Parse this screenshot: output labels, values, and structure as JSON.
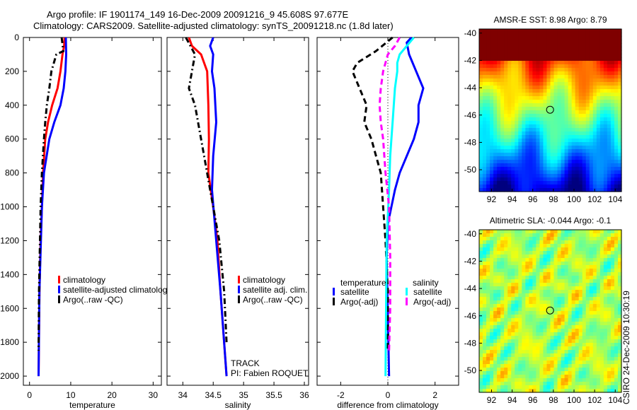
{
  "title_line1": "Argo profile: IF 1901174_149 16-Dec-2009 20091216_9 45.608S 97.677E",
  "title_line2": "Climatology: CARS2009. Satellite-adjusted climatology: synTS_20091218.nc (1.8d later)",
  "side_label": "CSIRO 24-Dec-2009 10:30:19",
  "colors": {
    "red": "#ff0000",
    "blue": "#0000ff",
    "black": "#000000",
    "cyan": "#00ffff",
    "magenta": "#ff00ff"
  },
  "chart_data": [
    {
      "type": "line",
      "id": "temp",
      "xlabel": "temperature",
      "xlim": [
        -1.5,
        32
      ],
      "ylim": [
        0,
        2054
      ],
      "yreversed": true,
      "xticks": [
        0,
        10,
        20,
        30
      ],
      "yticks": [
        0,
        200,
        400,
        600,
        800,
        1000,
        1200,
        1400,
        1600,
        1800,
        2000
      ],
      "legend": [
        "climatology",
        "satellite-adjusted climatolog",
        "Argo(..raw -QC)"
      ],
      "series": [
        {
          "name": "climatology",
          "color": "#ff0000",
          "style": "solid",
          "points": [
            [
              0,
              8.5
            ],
            [
              50,
              8.4
            ],
            [
              100,
              8.0
            ],
            [
              200,
              7.5
            ],
            [
              300,
              6.8
            ],
            [
              400,
              5.5
            ],
            [
              500,
              4.5
            ],
            [
              600,
              3.8
            ],
            [
              800,
              3.3
            ],
            [
              1000,
              3.0
            ],
            [
              1200,
              2.7
            ],
            [
              1500,
              2.4
            ],
            [
              2000,
              2.2
            ]
          ]
        },
        {
          "name": "satellite",
          "color": "#0000ff",
          "style": "solid",
          "points": [
            [
              0,
              8.8
            ],
            [
              100,
              8.9
            ],
            [
              200,
              8.7
            ],
            [
              300,
              8.3
            ],
            [
              400,
              7.5
            ],
            [
              500,
              6.0
            ],
            [
              600,
              4.8
            ],
            [
              800,
              3.5
            ],
            [
              1000,
              3.0
            ],
            [
              1500,
              2.4
            ],
            [
              2000,
              2.2
            ]
          ]
        },
        {
          "name": "Argo",
          "color": "#000000",
          "style": "dashdot",
          "points": [
            [
              0,
              7.8
            ],
            [
              80,
              8.2
            ],
            [
              100,
              6.5
            ],
            [
              200,
              5.3
            ],
            [
              300,
              4.8
            ],
            [
              400,
              4.2
            ],
            [
              500,
              3.8
            ],
            [
              600,
              3.5
            ],
            [
              800,
              3.0
            ],
            [
              1000,
              2.7
            ],
            [
              1500,
              2.3
            ],
            [
              1850,
              2.2
            ]
          ]
        }
      ]
    },
    {
      "type": "line",
      "id": "sal",
      "xlabel": "salinity",
      "xlim": [
        33.74,
        36.07
      ],
      "ylim": [
        0,
        2054
      ],
      "yreversed": true,
      "xticks": [
        34,
        34.5,
        35,
        35.5,
        36
      ],
      "legend": [
        "climatology",
        "satellite adj. clim.",
        "Argo(..raw -QC)"
      ],
      "annotations": [
        "TRACK",
        "PI: Fabien ROQUET"
      ],
      "series": [
        {
          "name": "climatology",
          "color": "#ff0000",
          "style": "solid",
          "points": [
            [
              0,
              34.1
            ],
            [
              50,
              34.15
            ],
            [
              100,
              34.3
            ],
            [
              200,
              34.4
            ],
            [
              400,
              34.42
            ],
            [
              600,
              34.43
            ],
            [
              800,
              34.42
            ],
            [
              1000,
              34.5
            ],
            [
              1200,
              34.57
            ],
            [
              1500,
              34.62
            ],
            [
              2000,
              34.72
            ]
          ]
        },
        {
          "name": "satellite",
          "color": "#0000ff",
          "style": "solid",
          "points": [
            [
              0,
              34.5
            ],
            [
              50,
              34.45
            ],
            [
              100,
              34.5
            ],
            [
              200,
              34.48
            ],
            [
              300,
              34.52
            ],
            [
              500,
              34.55
            ],
            [
              700,
              34.5
            ],
            [
              900,
              34.48
            ],
            [
              1200,
              34.55
            ],
            [
              1500,
              34.62
            ],
            [
              2000,
              34.72
            ]
          ]
        },
        {
          "name": "Argo",
          "color": "#000000",
          "style": "dashdot",
          "points": [
            [
              0,
              34.05
            ],
            [
              100,
              34.2
            ],
            [
              200,
              34.15
            ],
            [
              300,
              34.1
            ],
            [
              400,
              34.2
            ],
            [
              500,
              34.25
            ],
            [
              700,
              34.35
            ],
            [
              900,
              34.45
            ],
            [
              1200,
              34.6
            ],
            [
              1500,
              34.68
            ],
            [
              1800,
              34.72
            ]
          ]
        }
      ]
    },
    {
      "type": "line",
      "id": "diff",
      "xlabel": "difference from climatology",
      "xlim": [
        -3,
        3
      ],
      "ylim": [
        0,
        2054
      ],
      "yreversed": true,
      "xticks": [
        -2,
        0,
        2
      ],
      "legend_titles": [
        "temperature",
        "salinity"
      ],
      "legend": [
        "satellite",
        "Argo(-adj)",
        "satellite",
        "Argo(-adj)"
      ],
      "series": [
        {
          "name": "temperature satellite",
          "color": "#0000ff",
          "style": "solid",
          "points": [
            [
              0,
              1.0
            ],
            [
              30,
              0.8
            ],
            [
              100,
              0.9
            ],
            [
              200,
              1.2
            ],
            [
              300,
              1.5
            ],
            [
              400,
              1.3
            ],
            [
              500,
              1.3
            ],
            [
              600,
              1.1
            ],
            [
              700,
              0.8
            ],
            [
              800,
              0.5
            ],
            [
              900,
              0.3
            ],
            [
              1100,
              0.0
            ],
            [
              1300,
              -0.05
            ],
            [
              2000,
              0.05
            ]
          ]
        },
        {
          "name": "temperature Argo(-adj)",
          "color": "#000000",
          "style": "dash",
          "points": [
            [
              0,
              0.2
            ],
            [
              80,
              -0.5
            ],
            [
              150,
              -1.3
            ],
            [
              200,
              -1.5
            ],
            [
              300,
              -1.2
            ],
            [
              400,
              -0.9
            ],
            [
              500,
              -1.0
            ],
            [
              600,
              -0.7
            ],
            [
              700,
              -0.5
            ],
            [
              800,
              -0.3
            ],
            [
              1000,
              -0.2
            ],
            [
              1200,
              -0.1
            ],
            [
              1500,
              0
            ],
            [
              1850,
              0
            ]
          ]
        },
        {
          "name": "salinity satellite",
          "color": "#00ffff",
          "style": "solid",
          "points": [
            [
              0,
              1.1
            ],
            [
              50,
              0.8
            ],
            [
              100,
              0.5
            ],
            [
              150,
              0.4
            ],
            [
              200,
              0.4
            ],
            [
              300,
              0.3
            ],
            [
              500,
              0.2
            ],
            [
              700,
              0.1
            ],
            [
              900,
              0.05
            ],
            [
              1200,
              -0.05
            ],
            [
              2000,
              -0.1
            ]
          ]
        },
        {
          "name": "salinity Argo(-adj)",
          "color": "#ff00ff",
          "style": "dash",
          "points": [
            [
              0,
              0.5
            ],
            [
              50,
              0.3
            ],
            [
              100,
              0.0
            ],
            [
              200,
              -0.2
            ],
            [
              300,
              -0.3
            ],
            [
              400,
              -0.35
            ],
            [
              500,
              -0.3
            ],
            [
              600,
              -0.2
            ],
            [
              800,
              -0.1
            ],
            [
              1000,
              0.05
            ],
            [
              1300,
              0.1
            ],
            [
              1600,
              0.1
            ],
            [
              1850,
              0.05
            ]
          ]
        }
      ]
    },
    {
      "type": "heatmap",
      "id": "sst",
      "title": "AMSR-E SST: 8.98  Argo: 8.79",
      "xlim": [
        90.8,
        104.6
      ],
      "ylim": [
        -51.6,
        -39.7
      ],
      "xticks": [
        92,
        94,
        96,
        98,
        100,
        102,
        104
      ],
      "yticks": [
        -40,
        -42,
        -44,
        -46,
        -48,
        -50
      ],
      "marker": [
        97.677,
        -45.608
      ]
    },
    {
      "type": "heatmap",
      "id": "sla",
      "title": "Altimetric SLA: -0.044  Argo: -0.1",
      "xlim": [
        90.8,
        104.6
      ],
      "ylim": [
        -51.6,
        -39.7
      ],
      "xticks": [
        92,
        94,
        96,
        98,
        100,
        102,
        104
      ],
      "yticks": [
        -40,
        -42,
        -44,
        -46,
        -48,
        -50
      ],
      "marker": [
        97.677,
        -45.608
      ]
    }
  ]
}
